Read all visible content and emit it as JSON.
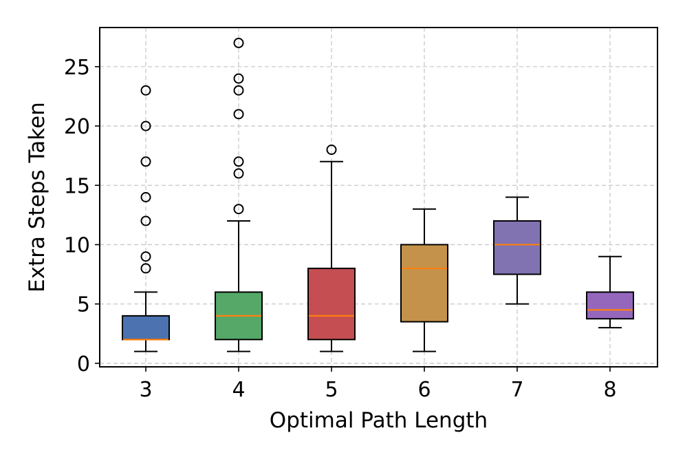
{
  "chart_data": {
    "type": "box",
    "title": "",
    "xlabel": "Optimal Path Length",
    "ylabel": "Extra Steps Taken",
    "ylim": [
      -0.3,
      28.3
    ],
    "yticks": [
      0,
      5,
      10,
      15,
      20,
      25
    ],
    "grid": true,
    "categories": [
      "3",
      "4",
      "5",
      "6",
      "7",
      "8"
    ],
    "boxes": [
      {
        "category": "3",
        "color": "#4c72b0",
        "whisker_low": 1,
        "q1": 2,
        "median": 2,
        "q3": 4,
        "whisker_high": 6,
        "outliers": [
          8,
          9,
          12,
          14,
          17,
          20,
          23
        ]
      },
      {
        "category": "4",
        "color": "#55a868",
        "whisker_low": 1,
        "q1": 2,
        "median": 4,
        "q3": 6,
        "whisker_high": 12,
        "outliers": [
          13,
          16,
          17,
          21,
          23,
          24,
          27
        ]
      },
      {
        "category": "5",
        "color": "#c44e52",
        "whisker_low": 1,
        "q1": 2,
        "median": 4,
        "q3": 8,
        "whisker_high": 17,
        "outliers": [
          18
        ]
      },
      {
        "category": "6",
        "color": "#c4924b",
        "whisker_low": 1,
        "q1": 3.5,
        "median": 8,
        "q3": 10,
        "whisker_high": 13,
        "outliers": []
      },
      {
        "category": "7",
        "color": "#8172b2",
        "whisker_low": 5,
        "q1": 7.5,
        "median": 10,
        "q3": 12,
        "whisker_high": 14,
        "outliers": []
      },
      {
        "category": "8",
        "color": "#9467bd",
        "whisker_low": 3,
        "q1": 3.75,
        "median": 4.5,
        "q3": 6,
        "whisker_high": 9,
        "outliers": []
      }
    ],
    "median_color": "#ff7f0e"
  }
}
